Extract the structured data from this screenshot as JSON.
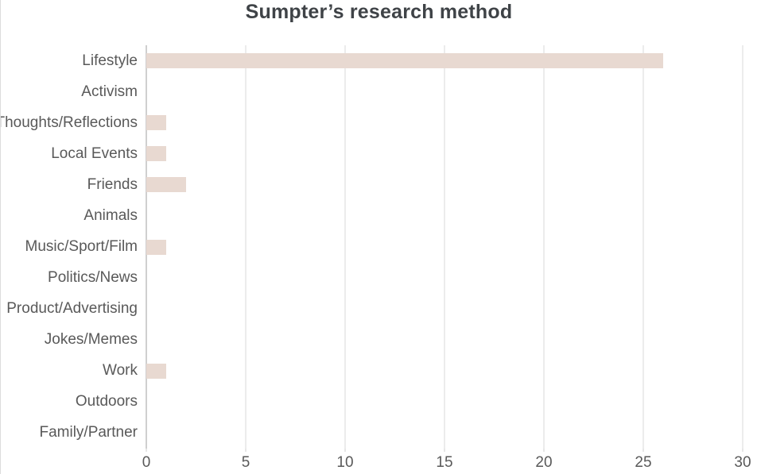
{
  "chart_data": {
    "type": "bar",
    "orientation": "horizontal",
    "title": "Sumpter’s research method",
    "categories": [
      "Lifestyle",
      "Activism",
      "Thoughts/Reflections",
      "Local Events",
      "Friends",
      "Animals",
      "Music/Sport/Film",
      "Politics/News",
      "Product/Advertising",
      "Jokes/Memes",
      "Work",
      "Outdoors",
      "Family/Partner"
    ],
    "values": [
      26,
      0,
      1,
      1,
      2,
      0,
      1,
      0,
      0,
      0,
      1,
      0,
      0
    ],
    "xlabel": "",
    "ylabel": "",
    "xlim": [
      0,
      30
    ],
    "x_ticks": [
      0,
      5,
      10,
      15,
      20,
      25,
      30
    ],
    "grid": "vertical-only",
    "legend": "none",
    "colors": {
      "bar": "#e8d9d1",
      "gridline": "#dadada",
      "axis_line": "#cfcfcf",
      "title_text": "#3f4347",
      "label_text": "#595959",
      "background": "#ffffff"
    }
  }
}
